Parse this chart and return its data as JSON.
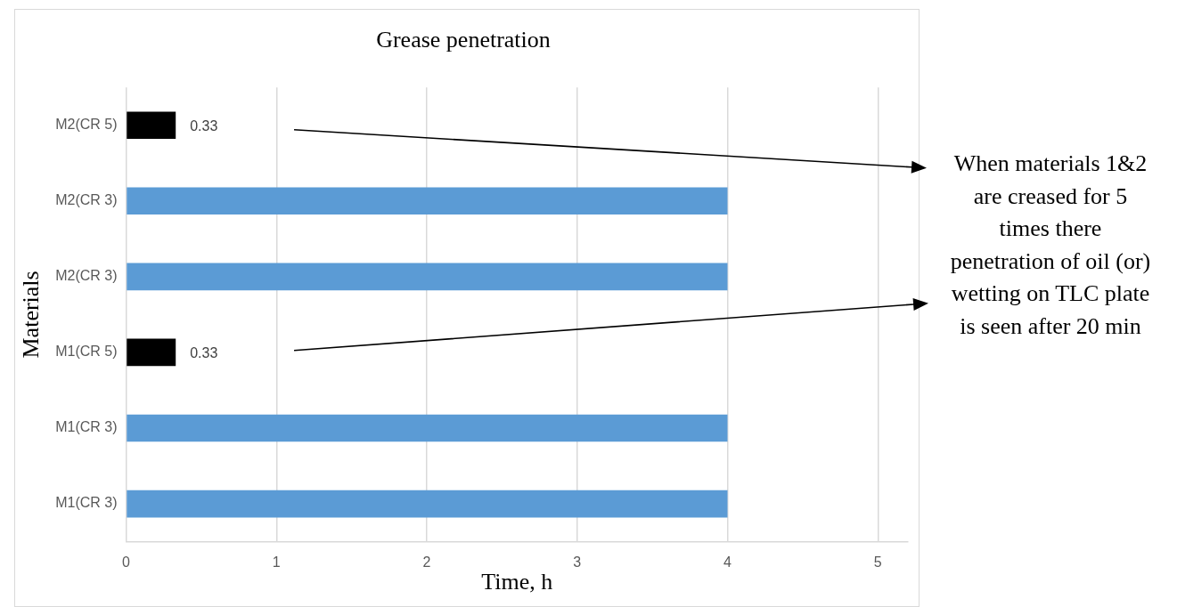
{
  "chart_data": {
    "type": "bar",
    "orientation": "horizontal",
    "title": "Grease penetration",
    "xlabel": "Time, h",
    "ylabel": "Materials",
    "categories": [
      "M2(CR 5)",
      "M2(CR 3)",
      "M2(CR 3)",
      "M1(CR 5)",
      "M1(CR 3)",
      "M1(CR 3)"
    ],
    "values": [
      0.33,
      4,
      4,
      0.33,
      4,
      4
    ],
    "colors": [
      "#000000",
      "#5b9bd5",
      "#5b9bd5",
      "#000000",
      "#5b9bd5",
      "#5b9bd5"
    ],
    "value_labels": [
      "0.33",
      null,
      null,
      "0.33",
      null,
      null
    ],
    "xlim": [
      0,
      5.2
    ],
    "xticks": [
      0,
      1,
      2,
      3,
      4,
      5
    ],
    "grid": "x",
    "legend": false,
    "annotations": [
      "When materials 1&2 are creased for 5 times there penetration of oil (or) wetting on TLC plate is seen after 20 min"
    ]
  }
}
